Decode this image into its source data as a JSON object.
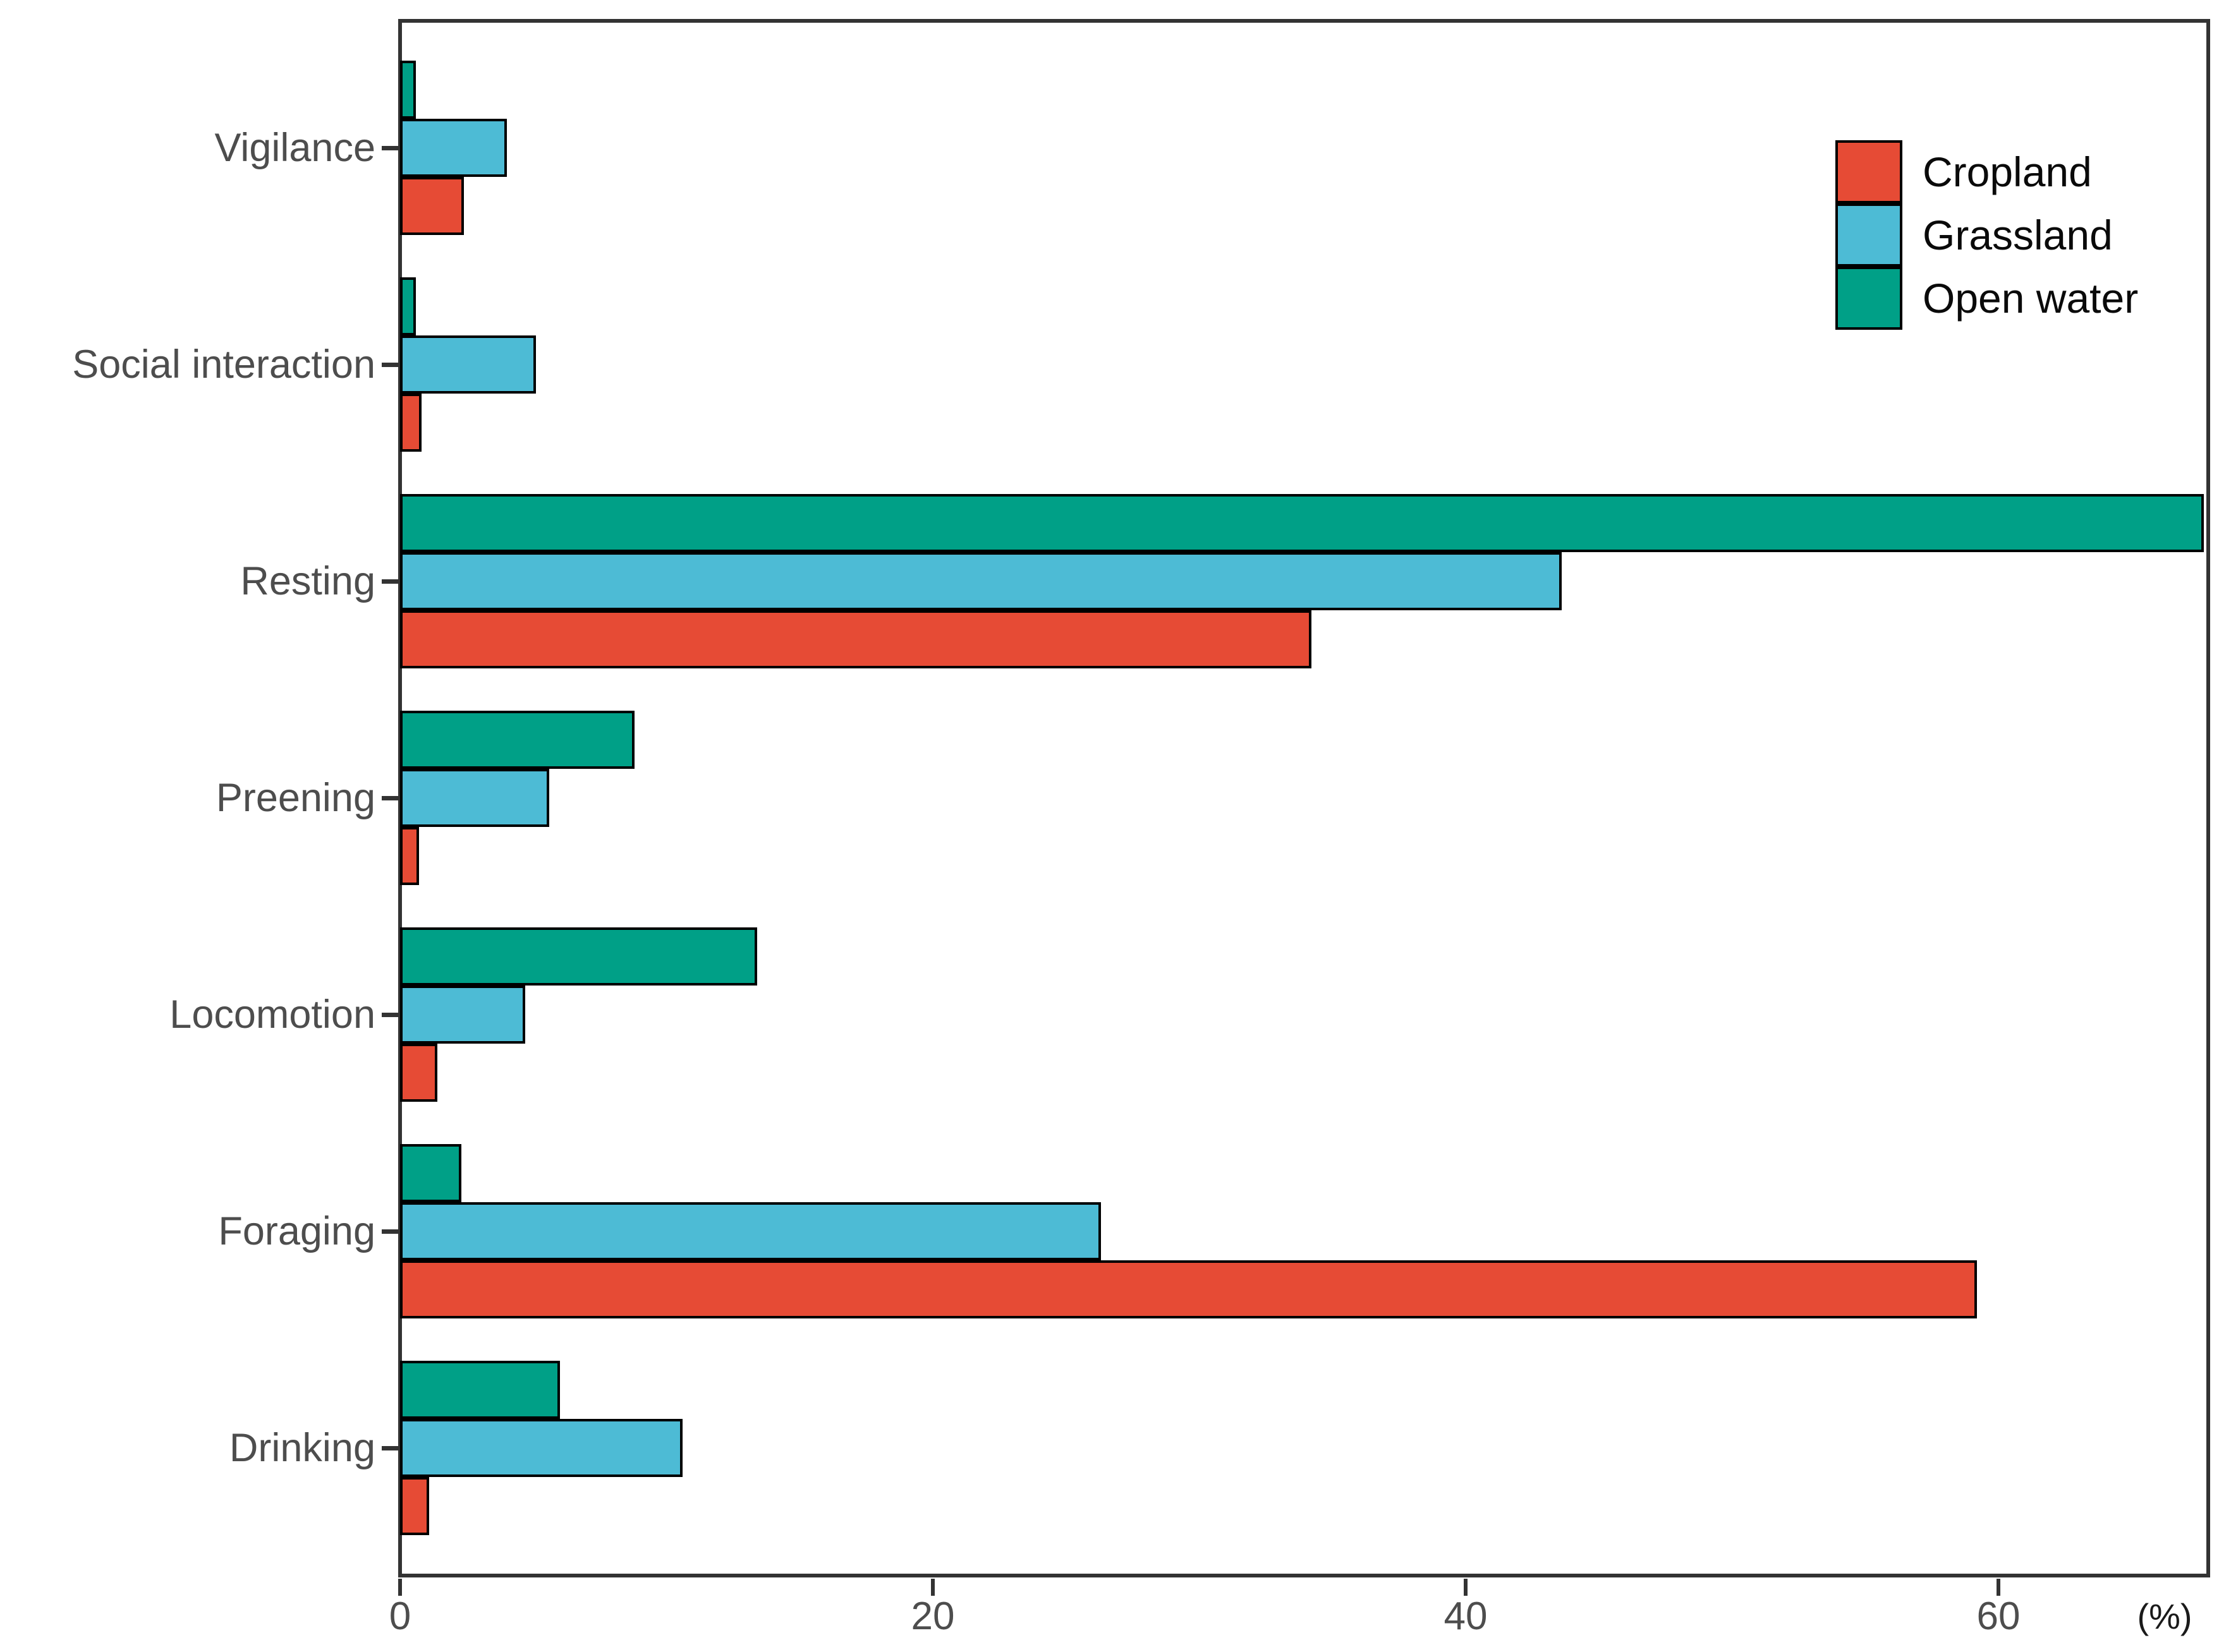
{
  "figure": {
    "background_color": "#ffffff",
    "panel_border_color": "#333333",
    "tick_label_color": "#4d4d4d",
    "bar_outline_color": "#000000"
  },
  "chart_data": {
    "type": "bar",
    "orientation": "horizontal",
    "title": "",
    "xlabel": "(%)",
    "ylabel": "",
    "xlim": [
      0,
      67.7
    ],
    "x_ticks": [
      "0",
      "20",
      "40",
      "60"
    ],
    "x_tick_values": [
      0,
      20,
      40,
      60
    ],
    "grid": false,
    "legend_position": "top-right-inside",
    "categories": [
      "Vigilance",
      "Social interaction",
      "Resting",
      "Preening",
      "Locomotion",
      "Foraging",
      "Drinking"
    ],
    "series": [
      {
        "name": "Cropland",
        "color": "#E64B35",
        "values": [
          2.4,
          0.8,
          34.2,
          0.7,
          1.4,
          59.2,
          1.1
        ]
      },
      {
        "name": "Grassland",
        "color": "#4DBBD5",
        "values": [
          4.0,
          5.1,
          43.6,
          5.6,
          4.7,
          26.3,
          10.6
        ]
      },
      {
        "name": "Open water",
        "color": "#00A087",
        "values": [
          0.6,
          0.6,
          67.7,
          8.8,
          13.4,
          2.3,
          6.0
        ]
      }
    ],
    "bar_order_top_to_bottom": [
      "Open water",
      "Grassland",
      "Cropland"
    ],
    "note": "Resting Open water bar reaches the right panel edge (~67.7%)"
  }
}
